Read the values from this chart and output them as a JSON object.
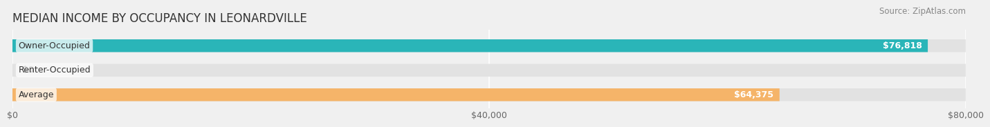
{
  "title": "MEDIAN INCOME BY OCCUPANCY IN LEONARDVILLE",
  "source": "Source: ZipAtlas.com",
  "categories": [
    "Owner-Occupied",
    "Renter-Occupied",
    "Average"
  ],
  "values": [
    76818,
    0,
    64375
  ],
  "bar_colors": [
    "#2ab5b8",
    "#b09fc8",
    "#f5b469"
  ],
  "bar_labels": [
    "$76,818",
    "$0",
    "$64,375"
  ],
  "xlim": [
    0,
    80000
  ],
  "xticks": [
    0,
    40000,
    80000
  ],
  "xtick_labels": [
    "$0",
    "$40,000",
    "$80,000"
  ],
  "background_color": "#f0f0f0",
  "bar_bg_color": "#e2e2e2",
  "title_fontsize": 12,
  "source_fontsize": 8.5,
  "cat_fontsize": 9,
  "val_fontsize": 9,
  "tick_fontsize": 9
}
